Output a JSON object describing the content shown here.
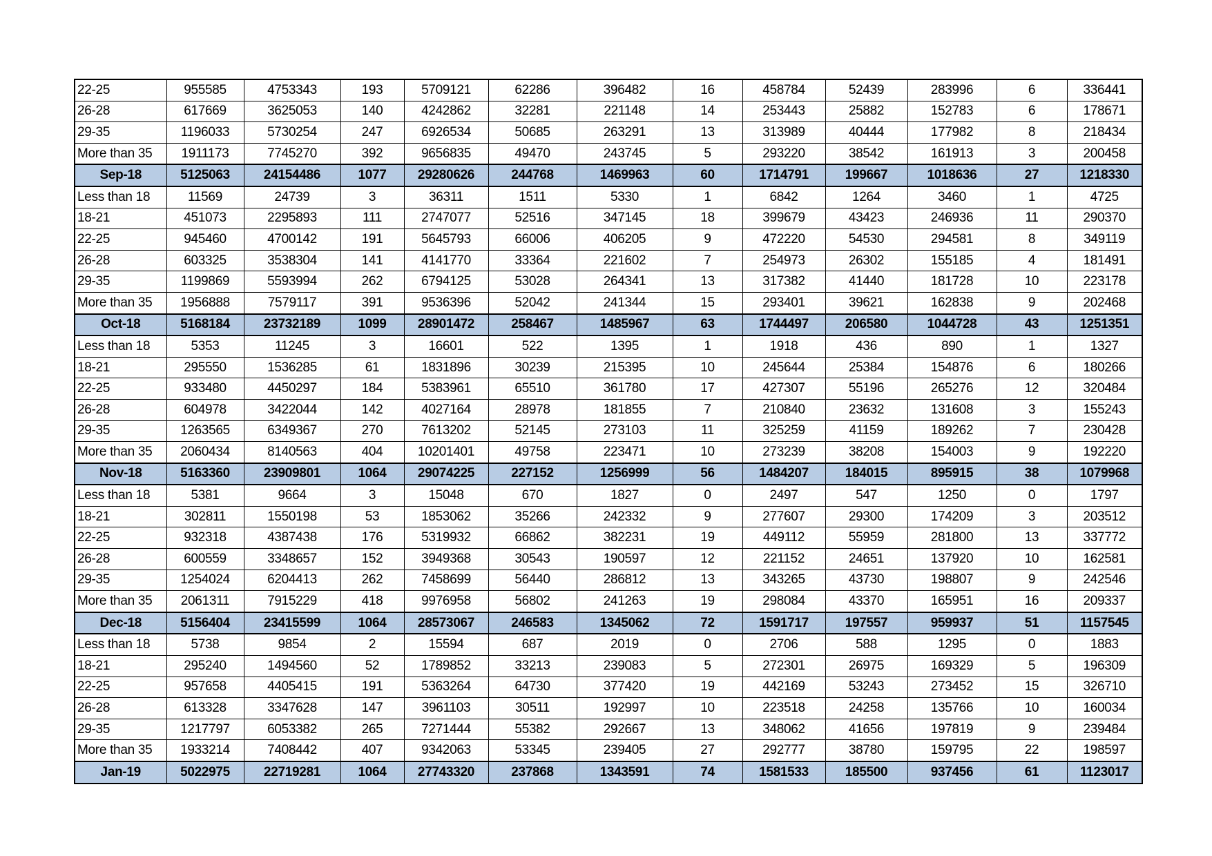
{
  "table": {
    "header_row_color": "#b8cce4",
    "rows": [
      {
        "type": "group",
        "cells": [
          "22-25",
          "955585",
          "4753343",
          "193",
          "5709121",
          "62286",
          "396482",
          "16",
          "458784",
          "52439",
          "283996",
          "6",
          "336441"
        ]
      },
      {
        "type": "group",
        "cells": [
          "26-28",
          "617669",
          "3625053",
          "140",
          "4242862",
          "32281",
          "221148",
          "14",
          "253443",
          "25882",
          "152783",
          "6",
          "178671"
        ]
      },
      {
        "type": "group",
        "cells": [
          "29-35",
          "1196033",
          "5730254",
          "247",
          "6926534",
          "50685",
          "263291",
          "13",
          "313989",
          "40444",
          "177982",
          "8",
          "218434"
        ]
      },
      {
        "type": "group",
        "cells": [
          "More than 35",
          "1911173",
          "7745270",
          "392",
          "9656835",
          "49470",
          "243745",
          "5",
          "293220",
          "38542",
          "161913",
          "3",
          "200458"
        ]
      },
      {
        "type": "total",
        "cells": [
          "Sep-18",
          "5125063",
          "24154486",
          "1077",
          "29280626",
          "244768",
          "1469963",
          "60",
          "1714791",
          "199667",
          "1018636",
          "27",
          "1218330"
        ]
      },
      {
        "type": "group",
        "cells": [
          "Less than 18",
          "11569",
          "24739",
          "3",
          "36311",
          "1511",
          "5330",
          "1",
          "6842",
          "1264",
          "3460",
          "1",
          "4725"
        ]
      },
      {
        "type": "group",
        "cells": [
          "18-21",
          "451073",
          "2295893",
          "111",
          "2747077",
          "52516",
          "347145",
          "18",
          "399679",
          "43423",
          "246936",
          "11",
          "290370"
        ]
      },
      {
        "type": "group",
        "cells": [
          "22-25",
          "945460",
          "4700142",
          "191",
          "5645793",
          "66006",
          "406205",
          "9",
          "472220",
          "54530",
          "294581",
          "8",
          "349119"
        ]
      },
      {
        "type": "group",
        "cells": [
          "26-28",
          "603325",
          "3538304",
          "141",
          "4141770",
          "33364",
          "221602",
          "7",
          "254973",
          "26302",
          "155185",
          "4",
          "181491"
        ]
      },
      {
        "type": "group",
        "cells": [
          "29-35",
          "1199869",
          "5593994",
          "262",
          "6794125",
          "53028",
          "264341",
          "13",
          "317382",
          "41440",
          "181728",
          "10",
          "223178"
        ]
      },
      {
        "type": "group",
        "cells": [
          "More than 35",
          "1956888",
          "7579117",
          "391",
          "9536396",
          "52042",
          "241344",
          "15",
          "293401",
          "39621",
          "162838",
          "9",
          "202468"
        ]
      },
      {
        "type": "total",
        "cells": [
          "Oct-18",
          "5168184",
          "23732189",
          "1099",
          "28901472",
          "258467",
          "1485967",
          "63",
          "1744497",
          "206580",
          "1044728",
          "43",
          "1251351"
        ]
      },
      {
        "type": "group",
        "cells": [
          "Less than 18",
          "5353",
          "11245",
          "3",
          "16601",
          "522",
          "1395",
          "1",
          "1918",
          "436",
          "890",
          "1",
          "1327"
        ]
      },
      {
        "type": "group",
        "cells": [
          "18-21",
          "295550",
          "1536285",
          "61",
          "1831896",
          "30239",
          "215395",
          "10",
          "245644",
          "25384",
          "154876",
          "6",
          "180266"
        ]
      },
      {
        "type": "group",
        "cells": [
          "22-25",
          "933480",
          "4450297",
          "184",
          "5383961",
          "65510",
          "361780",
          "17",
          "427307",
          "55196",
          "265276",
          "12",
          "320484"
        ]
      },
      {
        "type": "group",
        "cells": [
          "26-28",
          "604978",
          "3422044",
          "142",
          "4027164",
          "28978",
          "181855",
          "7",
          "210840",
          "23632",
          "131608",
          "3",
          "155243"
        ]
      },
      {
        "type": "group",
        "cells": [
          "29-35",
          "1263565",
          "6349367",
          "270",
          "7613202",
          "52145",
          "273103",
          "11",
          "325259",
          "41159",
          "189262",
          "7",
          "230428"
        ]
      },
      {
        "type": "group",
        "cells": [
          "More than 35",
          "2060434",
          "8140563",
          "404",
          "10201401",
          "49758",
          "223471",
          "10",
          "273239",
          "38208",
          "154003",
          "9",
          "192220"
        ]
      },
      {
        "type": "total",
        "cells": [
          "Nov-18",
          "5163360",
          "23909801",
          "1064",
          "29074225",
          "227152",
          "1256999",
          "56",
          "1484207",
          "184015",
          "895915",
          "38",
          "1079968"
        ]
      },
      {
        "type": "group",
        "cells": [
          "Less than 18",
          "5381",
          "9664",
          "3",
          "15048",
          "670",
          "1827",
          "0",
          "2497",
          "547",
          "1250",
          "0",
          "1797"
        ]
      },
      {
        "type": "group",
        "cells": [
          "18-21",
          "302811",
          "1550198",
          "53",
          "1853062",
          "35266",
          "242332",
          "9",
          "277607",
          "29300",
          "174209",
          "3",
          "203512"
        ]
      },
      {
        "type": "group",
        "cells": [
          "22-25",
          "932318",
          "4387438",
          "176",
          "5319932",
          "66862",
          "382231",
          "19",
          "449112",
          "55959",
          "281800",
          "13",
          "337772"
        ]
      },
      {
        "type": "group",
        "cells": [
          "26-28",
          "600559",
          "3348657",
          "152",
          "3949368",
          "30543",
          "190597",
          "12",
          "221152",
          "24651",
          "137920",
          "10",
          "162581"
        ]
      },
      {
        "type": "group",
        "cells": [
          "29-35",
          "1254024",
          "6204413",
          "262",
          "7458699",
          "56440",
          "286812",
          "13",
          "343265",
          "43730",
          "198807",
          "9",
          "242546"
        ]
      },
      {
        "type": "group",
        "cells": [
          "More than 35",
          "2061311",
          "7915229",
          "418",
          "9976958",
          "56802",
          "241263",
          "19",
          "298084",
          "43370",
          "165951",
          "16",
          "209337"
        ]
      },
      {
        "type": "total",
        "cells": [
          "Dec-18",
          "5156404",
          "23415599",
          "1064",
          "28573067",
          "246583",
          "1345062",
          "72",
          "1591717",
          "197557",
          "959937",
          "51",
          "1157545"
        ]
      },
      {
        "type": "group",
        "cells": [
          "Less than 18",
          "5738",
          "9854",
          "2",
          "15594",
          "687",
          "2019",
          "0",
          "2706",
          "588",
          "1295",
          "0",
          "1883"
        ]
      },
      {
        "type": "group",
        "cells": [
          "18-21",
          "295240",
          "1494560",
          "52",
          "1789852",
          "33213",
          "239083",
          "5",
          "272301",
          "26975",
          "169329",
          "5",
          "196309"
        ]
      },
      {
        "type": "group",
        "cells": [
          "22-25",
          "957658",
          "4405415",
          "191",
          "5363264",
          "64730",
          "377420",
          "19",
          "442169",
          "53243",
          "273452",
          "15",
          "326710"
        ]
      },
      {
        "type": "group",
        "cells": [
          "26-28",
          "613328",
          "3347628",
          "147",
          "3961103",
          "30511",
          "192997",
          "10",
          "223518",
          "24258",
          "135766",
          "10",
          "160034"
        ]
      },
      {
        "type": "group",
        "cells": [
          "29-35",
          "1217797",
          "6053382",
          "265",
          "7271444",
          "55382",
          "292667",
          "13",
          "348062",
          "41656",
          "197819",
          "9",
          "239484"
        ]
      },
      {
        "type": "group",
        "cells": [
          "More than 35",
          "1933214",
          "7408442",
          "407",
          "9342063",
          "53345",
          "239405",
          "27",
          "292777",
          "38780",
          "159795",
          "22",
          "198597"
        ]
      },
      {
        "type": "total",
        "cells": [
          "Jan-19",
          "5022975",
          "22719281",
          "1064",
          "27743320",
          "237868",
          "1343591",
          "74",
          "1581533",
          "185500",
          "937456",
          "61",
          "1123017"
        ]
      }
    ]
  }
}
